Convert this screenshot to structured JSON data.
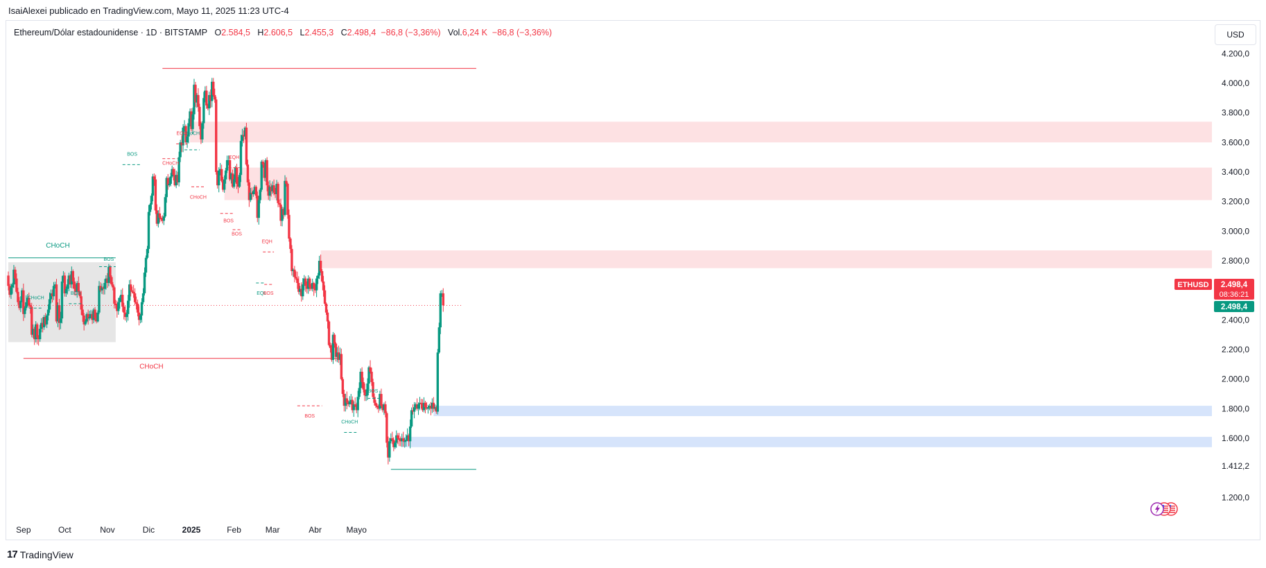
{
  "header": {
    "publisher": "IsaiAlexei publicado en TradingView.com, Mayo 11, 2025 11:23 UTC-4",
    "symbol_desc": "Ethereum/Dólar estadounidense · 1D · BITSTAMP",
    "o_label": "O",
    "o_value": "2.584,5",
    "h_label": "H",
    "h_value": "2.606,5",
    "l_label": "L",
    "l_value": "2.455,3",
    "c_label": "C",
    "c_value": "2.498,4",
    "change": "−86,8 (−3,36%)",
    "vol_label": "Vol.",
    "vol_value": "6,24 K",
    "vol_change": "−86,8 (−3,36%)"
  },
  "currency_button": "USD",
  "footer": {
    "brand": "TradingView",
    "logo": "17"
  },
  "colors": {
    "up": "#089981",
    "down": "#f23645",
    "supply_zone": "#fde1e3",
    "demand_zone": "#d6e4fb",
    "range_box": "#e6e6e6"
  },
  "badges": {
    "symbol": "ETHUSD",
    "price": "2.498,4",
    "countdown": "08:36:21",
    "last": "2.498,4"
  },
  "icons": [
    "flag-us-icon",
    "flag-us-icon",
    "lightning-icon"
  ],
  "chart_data": {
    "type": "candlestick",
    "symbol": "ETHUSD",
    "ylim": [
      1050,
      4350
    ],
    "y_ticks": [
      "4.200,0",
      "4.000,0",
      "3.800,0",
      "3.600,0",
      "3.400,0",
      "3.200,0",
      "3.000,0",
      "2.800,0",
      "2.400,0",
      "2.200,0",
      "2.000,0",
      "1.800,0",
      "1.600,0",
      "1.200,0"
    ],
    "y_tick_values": [
      4200,
      4000,
      3800,
      3600,
      3400,
      3200,
      3000,
      2800,
      2400,
      2200,
      2000,
      1800,
      1600,
      1200
    ],
    "special_price_labels": [
      {
        "value": 1412.2,
        "label": "1.412,2"
      }
    ],
    "x_ticks": [
      {
        "label": "Sep",
        "date": "2024-09-01",
        "bold": false
      },
      {
        "label": "Oct",
        "date": "2024-10-01",
        "bold": false
      },
      {
        "label": "Nov",
        "date": "2024-11-01",
        "bold": false
      },
      {
        "label": "Dic",
        "date": "2024-12-01",
        "bold": false
      },
      {
        "label": "2025",
        "date": "2025-01-01",
        "bold": true
      },
      {
        "label": "Feb",
        "date": "2025-02-01",
        "bold": false
      },
      {
        "label": "Mar",
        "date": "2025-03-01",
        "bold": false
      },
      {
        "label": "Abr",
        "date": "2025-04-01",
        "bold": false
      },
      {
        "label": "Mayo",
        "date": "2025-05-01",
        "bold": false
      }
    ],
    "first_date": "2024-08-21",
    "closes": [
      2630,
      2570,
      2620,
      2640,
      2740,
      2680,
      2590,
      2520,
      2480,
      2530,
      2600,
      2440,
      2480,
      2520,
      2550,
      2500,
      2490,
      2300,
      2340,
      2270,
      2370,
      2280,
      2270,
      2340,
      2380,
      2350,
      2420,
      2370,
      2430,
      2470,
      2540,
      2580,
      2560,
      2630,
      2640,
      2390,
      2500,
      2380,
      2410,
      2660,
      2700,
      2580,
      2610,
      2640,
      2700,
      2640,
      2730,
      2660,
      2610,
      2590,
      2650,
      2590,
      2560,
      2470,
      2430,
      2370,
      2390,
      2440,
      2410,
      2420,
      2440,
      2400,
      2470,
      2410,
      2390,
      2450,
      2630,
      2600,
      2620,
      2610,
      2650,
      2680,
      2650,
      2760,
      2690,
      2640,
      2620,
      2510,
      2500,
      2460,
      2520,
      2550,
      2570,
      2490,
      2450,
      2420,
      2440,
      2530,
      2640,
      2600,
      2590,
      2580,
      2520,
      2510,
      2450,
      2400,
      2430,
      2520,
      2580,
      2720,
      2820,
      2880,
      3130,
      3180,
      3240,
      3370,
      3350,
      3140,
      3050,
      3120,
      3090,
      3080,
      3070,
      3100,
      3230,
      3360,
      3310,
      3320,
      3370,
      3420,
      3380,
      3310,
      3380,
      3330,
      3500,
      3600,
      3580,
      3700,
      3710,
      3600,
      3640,
      3730,
      3810,
      3690,
      3790,
      3990,
      3870,
      3920,
      3840,
      3710,
      3620,
      3730,
      3900,
      3950,
      3850,
      3830,
      3920,
      3880,
      4010,
      3920,
      3890,
      3400,
      3310,
      3410,
      3420,
      3340,
      3280,
      3350,
      3410,
      3480,
      3480,
      3350,
      3390,
      3300,
      3350,
      3430,
      3320,
      3300,
      3380,
      3610,
      3650,
      3640,
      3700,
      3450,
      3330,
      3210,
      3260,
      3250,
      3270,
      3300,
      3240,
      3090,
      3210,
      3280,
      3470,
      3450,
      3360,
      3480,
      3310,
      3240,
      3300,
      3270,
      3310,
      3260,
      3250,
      3320,
      3190,
      3180,
      3070,
      3150,
      3110,
      3340,
      3320,
      3110,
      2950,
      2880,
      2730,
      2740,
      2690,
      2680,
      2650,
      2590,
      2610,
      2560,
      2640,
      2680,
      2630,
      2610,
      2680,
      2620,
      2610,
      2650,
      2610,
      2600,
      2680,
      2700,
      2800,
      2730,
      2660,
      2600,
      2510,
      2450,
      2390,
      2230,
      2210,
      2130,
      2300,
      2240,
      2150,
      2180,
      2130,
      2170,
      2000,
      1900,
      1820,
      1870,
      1840,
      1830,
      1850,
      1860,
      1790,
      1830,
      1820,
      1790,
      1880,
      1940,
      2050,
      1980,
      1930,
      1890,
      1890,
      1970,
      2080,
      2050,
      1980,
      1880,
      1840,
      1820,
      1810,
      1800,
      1900,
      1820,
      1790,
      1830,
      1770,
      1570,
      1470,
      1580,
      1600,
      1590,
      1540,
      1570,
      1620,
      1600,
      1590,
      1580,
      1600,
      1580,
      1580,
      1590,
      1620,
      1580,
      1680,
      1790,
      1780,
      1810,
      1830,
      1800,
      1830,
      1840,
      1830,
      1790,
      1840,
      1810,
      1800,
      1810,
      1820,
      1800,
      1840,
      1800,
      1810,
      1780,
      2180,
      2350,
      2580,
      2580,
      2498.4
    ],
    "zones": [
      {
        "kind": "supply",
        "from_bar": 132,
        "top": 3740,
        "bottom": 3600
      },
      {
        "kind": "supply",
        "from_bar": 157,
        "top": 3430,
        "bottom": 3210
      },
      {
        "kind": "supply",
        "from_bar": 227,
        "top": 2870,
        "bottom": 2750
      },
      {
        "kind": "demand",
        "from_bar": 309,
        "top": 1820,
        "bottom": 1750
      },
      {
        "kind": "demand",
        "from_bar": 286,
        "top": 1610,
        "bottom": 1540
      },
      {
        "kind": "range",
        "from_bar": 0,
        "to_bar": 78,
        "top": 2790,
        "bottom": 2250
      }
    ],
    "lines": [
      {
        "color": "#f23645",
        "style": "solid",
        "from_bar": 112,
        "to_bar": 340,
        "price": 4100
      },
      {
        "color": "#f23645",
        "style": "solid",
        "from_bar": 11,
        "to_bar": 240,
        "price": 2140
      },
      {
        "color": "#089981",
        "style": "solid",
        "from_bar": 0,
        "to_bar": 78,
        "price": 2820
      },
      {
        "color": "#089981",
        "style": "solid",
        "from_bar": 278,
        "to_bar": 340,
        "price": 1390
      },
      {
        "color": "#f23645",
        "style": "dotted",
        "from_bar": 0,
        "to_bar": 330,
        "price": 2498.4
      }
    ],
    "structure_labels": [
      {
        "text": "CHoCH",
        "color": "#089981",
        "bar": 36,
        "price": 2890,
        "size": 10
      },
      {
        "text": "CHoCH",
        "color": "#f23645",
        "bar": 104,
        "price": 2070,
        "size": 10
      },
      {
        "text": "BOS",
        "color": "#089981",
        "bar": 73,
        "price": 2800,
        "size": 7,
        "seg": [
          66,
          78,
          2760
        ]
      },
      {
        "text": "CHoCH",
        "color": "#089981",
        "bar": 20,
        "price": 2540,
        "size": 7,
        "seg": [
          15,
          25,
          2480
        ]
      },
      {
        "text": "BOS",
        "color": "#089981",
        "bar": 49,
        "price": 2570,
        "size": 7,
        "seg": [
          44,
          53,
          2510
        ]
      },
      {
        "text": "BOS",
        "color": "#089981",
        "bar": 90,
        "price": 3510,
        "size": 7,
        "seg": [
          83,
          97,
          3450
        ]
      },
      {
        "text": "CHoCH",
        "color": "#f23645",
        "bar": 118,
        "price": 3450,
        "size": 7,
        "seg": [
          112,
          123,
          3490
        ]
      },
      {
        "text": "EQH",
        "color": "#f23645",
        "bar": 126,
        "price": 3650,
        "size": 7,
        "seg": [
          122,
          130,
          3590
        ]
      },
      {
        "text": "CHoCH",
        "color": "#089981",
        "bar": 133,
        "price": 3650,
        "size": 7,
        "seg": [
          128,
          139,
          3550
        ]
      },
      {
        "text": "CHoCH",
        "color": "#f23645",
        "bar": 138,
        "price": 3220,
        "size": 7,
        "seg": [
          133,
          143,
          3300
        ]
      },
      {
        "text": "EQH",
        "color": "#f23645",
        "bar": 164,
        "price": 3490,
        "size": 7,
        "seg": [
          160,
          168,
          3430
        ]
      },
      {
        "text": "BOS",
        "color": "#f23645",
        "bar": 160,
        "price": 3060,
        "size": 7,
        "seg": [
          154,
          164,
          3120
        ]
      },
      {
        "text": "BOS",
        "color": "#f23645",
        "bar": 166,
        "price": 2970,
        "size": 7,
        "seg": [
          163,
          170,
          3010
        ]
      },
      {
        "text": "EQH",
        "color": "#f23645",
        "bar": 188,
        "price": 2920,
        "size": 7,
        "seg": [
          185,
          193,
          2860
        ]
      },
      {
        "text": "EQL",
        "color": "#089981",
        "bar": 184,
        "price": 2570,
        "size": 7,
        "seg": [
          180,
          187,
          2650
        ]
      },
      {
        "text": "BOS",
        "color": "#f23645",
        "bar": 189,
        "price": 2570,
        "size": 7,
        "seg": [
          186,
          193,
          2640
        ]
      },
      {
        "text": "BOS",
        "color": "#f23645",
        "bar": 219,
        "price": 1740,
        "size": 7,
        "seg": [
          210,
          228,
          1820
        ]
      },
      {
        "text": "CHoCH",
        "color": "#089981",
        "bar": 248,
        "price": 1700,
        "size": 7,
        "seg": [
          244,
          253,
          1640
        ]
      },
      {
        "text": "BOS",
        "color": "#089981",
        "bar": 265,
        "price": 1910,
        "size": 7,
        "seg": [
          261,
          271,
          1870
        ]
      }
    ]
  }
}
